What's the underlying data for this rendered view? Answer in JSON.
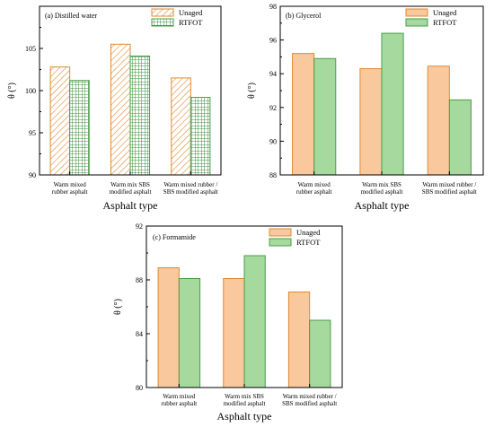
{
  "colors": {
    "unaged_fill": "#f9c89c",
    "unaged_stroke": "#e0892f",
    "rtfot_fill": "#a5d99d",
    "rtfot_stroke": "#4a9d4a",
    "hatch_line": "#e0892f",
    "grid_line": "#3f8f3f"
  },
  "chart_data": [
    {
      "type": "bar",
      "title": "(a) Distilled water",
      "xlabel": "Asphalt type",
      "ylabel": "θ (°)",
      "ylim": [
        90,
        110
      ],
      "yticks": [
        90,
        95,
        100,
        105
      ],
      "categories": [
        [
          "Warm mixed",
          "rubber asphalt"
        ],
        [
          "Warm mix SBS",
          "modified asphalt"
        ],
        [
          "Warm mixed rubber /",
          "SBS modified asphalt"
        ]
      ],
      "series": [
        {
          "name": "Unaged",
          "values": [
            102.8,
            105.5,
            101.5
          ],
          "pattern": "hatch"
        },
        {
          "name": "RTFOT",
          "values": [
            101.2,
            104.1,
            99.2
          ],
          "pattern": "grid"
        }
      ],
      "legend": "top-right",
      "grid": false
    },
    {
      "type": "bar",
      "title": "(b) Glycerol",
      "xlabel": "Asphalt type",
      "ylabel": "θ (°)",
      "ylim": [
        88,
        98
      ],
      "yticks": [
        88,
        90,
        92,
        94,
        96,
        98
      ],
      "categories": [
        [
          "Warm mixed",
          "rubber asphalt"
        ],
        [
          "Warm mix SBS",
          "modified asphalt"
        ],
        [
          "Warm mixed rubber /",
          "SBS modified asphalt"
        ]
      ],
      "series": [
        {
          "name": "Unaged",
          "values": [
            95.2,
            94.3,
            94.45
          ],
          "pattern": "solid"
        },
        {
          "name": "RTFOT",
          "values": [
            94.9,
            96.4,
            92.45
          ],
          "pattern": "solid"
        }
      ],
      "legend": "top-right",
      "grid": false
    },
    {
      "type": "bar",
      "title": "(c) Formamide",
      "xlabel": "Asphalt type",
      "ylabel": "θ (°)",
      "ylim": [
        80,
        92
      ],
      "yticks": [
        80,
        84,
        88,
        92
      ],
      "categories": [
        [
          "Warm mixed",
          "rubber asphalt"
        ],
        [
          "Warm mix SBS",
          "modified asphalt"
        ],
        [
          "Warm mixed rubber /",
          "SBS modified asphalt"
        ]
      ],
      "series": [
        {
          "name": "Unaged",
          "values": [
            88.9,
            88.1,
            87.1
          ],
          "pattern": "solid"
        },
        {
          "name": "RTFOT",
          "values": [
            88.1,
            89.8,
            85.0
          ],
          "pattern": "solid"
        }
      ],
      "legend": "top-right",
      "grid": false
    }
  ]
}
